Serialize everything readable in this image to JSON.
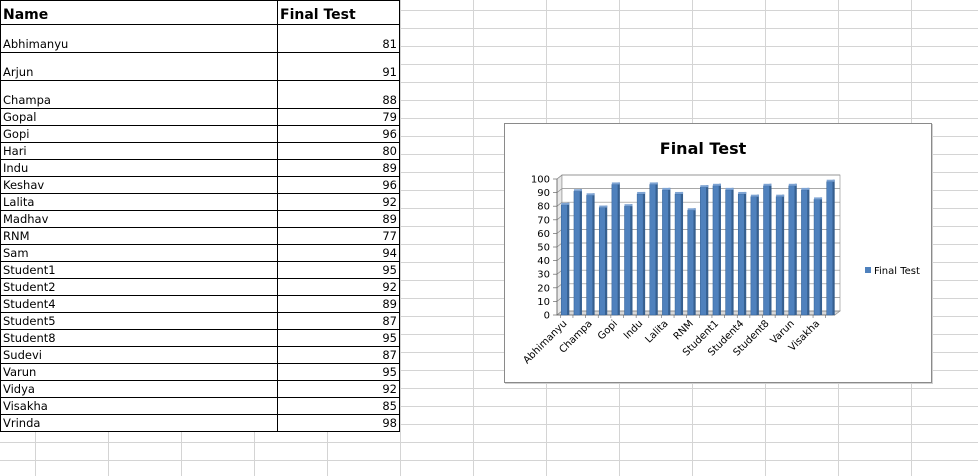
{
  "table": {
    "headers": {
      "name": "Name",
      "score": "Final Test"
    },
    "rows": [
      {
        "name": "Abhimanyu",
        "score": "81"
      },
      {
        "name": "Arjun",
        "score": "91"
      },
      {
        "name": "Champa",
        "score": "88"
      },
      {
        "name": "Gopal",
        "score": "79"
      },
      {
        "name": "Gopi",
        "score": "96"
      },
      {
        "name": "Hari",
        "score": "80"
      },
      {
        "name": "Indu",
        "score": "89"
      },
      {
        "name": "Keshav",
        "score": "96"
      },
      {
        "name": "Lalita",
        "score": "92"
      },
      {
        "name": "Madhav",
        "score": "89"
      },
      {
        "name": "RNM",
        "score": "77"
      },
      {
        "name": "Sam",
        "score": "94"
      },
      {
        "name": "Student1",
        "score": "95"
      },
      {
        "name": "Student2",
        "score": "92"
      },
      {
        "name": "Student4",
        "score": "89"
      },
      {
        "name": "Student5",
        "score": "87"
      },
      {
        "name": "Student8",
        "score": "95"
      },
      {
        "name": "Sudevi",
        "score": "87"
      },
      {
        "name": "Varun",
        "score": "95"
      },
      {
        "name": "Vidya",
        "score": "92"
      },
      {
        "name": "Visakha",
        "score": "85"
      },
      {
        "name": "Vrinda",
        "score": "98"
      }
    ]
  },
  "chart_data": {
    "type": "bar",
    "title": "Final Test",
    "categories": [
      "Abhimanyu",
      "Arjun",
      "Champa",
      "Gopal",
      "Gopi",
      "Hari",
      "Indu",
      "Keshav",
      "Lalita",
      "Madhav",
      "RNM",
      "Sam",
      "Student1",
      "Student2",
      "Student4",
      "Student5",
      "Student8",
      "Sudevi",
      "Varun",
      "Vidya",
      "Visakha",
      "Vrinda"
    ],
    "visible_category_labels": [
      "Abhimanyu",
      "Champa",
      "Gopi",
      "Indu",
      "Lalita",
      "RNM",
      "Student1",
      "Student4",
      "Student8",
      "Varun",
      "Visakha"
    ],
    "series": [
      {
        "name": "Final Test",
        "values": [
          81,
          91,
          88,
          79,
          96,
          80,
          89,
          96,
          92,
          89,
          77,
          94,
          95,
          92,
          89,
          87,
          95,
          87,
          95,
          92,
          85,
          98
        ]
      }
    ],
    "ylim": [
      0,
      100
    ],
    "yticks": [
      "0",
      "10",
      "20",
      "30",
      "40",
      "50",
      "60",
      "70",
      "80",
      "90",
      "100"
    ],
    "grid": true,
    "legend_position": "right",
    "bar_color": "#4f81bd"
  }
}
